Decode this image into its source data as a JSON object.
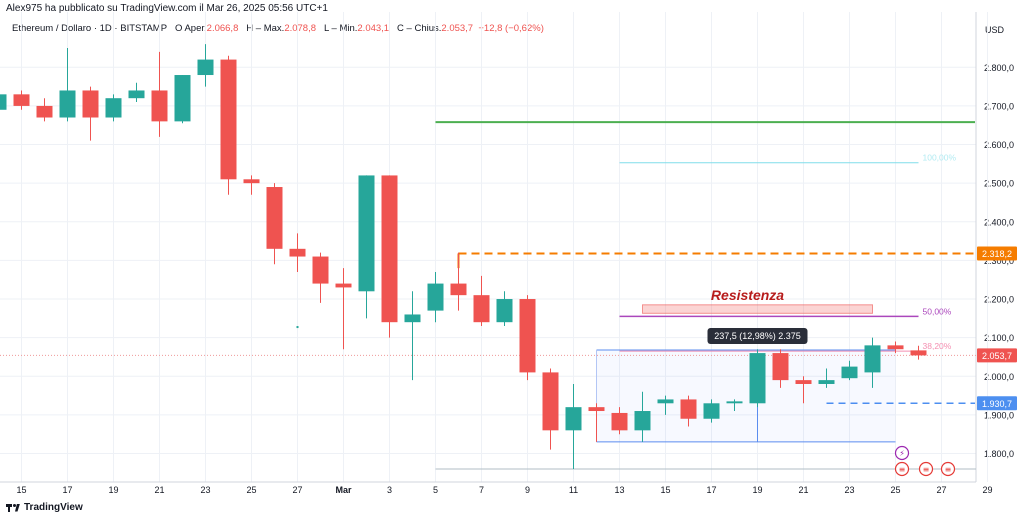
{
  "header": {
    "publisher": "Alex975 ha pubblicato su TradingView.com il Mar 26, 2025 05:56 UTC+1",
    "symbol": "Ethereum / Dollaro · 1D · BITSTAMP",
    "open_label": "O",
    "open_field": "Aper.",
    "open": "2.066,8",
    "high_label": "H",
    "high_field": "Max.",
    "high": "2.078,8",
    "low_label": "L",
    "low_field": "Min.",
    "low": "2.043,1",
    "close_label": "C",
    "close_field": "Chius.",
    "close": "2.053,7",
    "change": "−12,8 (−0,62%)",
    "currency": "USD"
  },
  "footer": {
    "brand": "TradingView"
  },
  "colors": {
    "up": "#26a69a",
    "down": "#ef5350",
    "green_line": "#4caf50",
    "orange": "#f57c00",
    "purple": "#ab47bc",
    "cyan": "#80deea",
    "blue": "#2962ff",
    "label_blue": "#4d8ff0"
  },
  "chart_data": {
    "type": "candlestick",
    "ylim": [
      1750,
      2875
    ],
    "y_ticks": [
      "2.800,0",
      "2.700,0",
      "2.600,0",
      "2.500,0",
      "2.400,0",
      "2.300,0",
      "2.200,0",
      "2.100,0",
      "2.000,0",
      "1.900,0",
      "1.800,0"
    ],
    "y_tick_values": [
      2800,
      2700,
      2600,
      2500,
      2400,
      2300,
      2200,
      2100,
      2000,
      1900,
      1800
    ],
    "x_ticks": [
      "15",
      "17",
      "19",
      "21",
      "23",
      "25",
      "27",
      "Mar",
      "3",
      "5",
      "7",
      "9",
      "11",
      "13",
      "15",
      "17",
      "19",
      "21",
      "23",
      "25",
      "27",
      "29"
    ],
    "x_tick_days": [
      0,
      2,
      4,
      6,
      8,
      10,
      12,
      14,
      16,
      18,
      20,
      22,
      24,
      26,
      28,
      30,
      32,
      34,
      36,
      38,
      40,
      42
    ],
    "candles": [
      {
        "d": -1,
        "o": 2690,
        "h": 2730,
        "l": 2680,
        "c": 2730
      },
      {
        "d": 0,
        "o": 2730,
        "h": 2740,
        "l": 2690,
        "c": 2700
      },
      {
        "d": 1,
        "o": 2700,
        "h": 2720,
        "l": 2660,
        "c": 2670
      },
      {
        "d": 2,
        "o": 2670,
        "h": 2850,
        "l": 2660,
        "c": 2740
      },
      {
        "d": 3,
        "o": 2740,
        "h": 2750,
        "l": 2610,
        "c": 2670
      },
      {
        "d": 4,
        "o": 2670,
        "h": 2730,
        "l": 2660,
        "c": 2720
      },
      {
        "d": 5,
        "o": 2720,
        "h": 2760,
        "l": 2710,
        "c": 2740
      },
      {
        "d": 6,
        "o": 2740,
        "h": 2840,
        "l": 2620,
        "c": 2660
      },
      {
        "d": 7,
        "o": 2660,
        "h": 2780,
        "l": 2655,
        "c": 2780
      },
      {
        "d": 8,
        "o": 2780,
        "h": 2860,
        "l": 2750,
        "c": 2820
      },
      {
        "d": 9,
        "o": 2820,
        "h": 2830,
        "l": 2470,
        "c": 2510
      },
      {
        "d": 10,
        "o": 2510,
        "h": 2520,
        "l": 2470,
        "c": 2500
      },
      {
        "d": 11,
        "o": 2490,
        "h": 2500,
        "l": 2290,
        "c": 2330
      },
      {
        "d": 12,
        "o": 2330,
        "h": 2370,
        "l": 2270,
        "c": 2310
      },
      {
        "d": 13,
        "o": 2310,
        "h": 2320,
        "l": 2190,
        "c": 2240
      },
      {
        "d": 14,
        "o": 2240,
        "h": 2280,
        "l": 2070,
        "c": 2230
      },
      {
        "d": 15,
        "o": 2220,
        "h": 2520,
        "l": 2150,
        "c": 2520
      },
      {
        "d": 16,
        "o": 2520,
        "h": 2520,
        "l": 2100,
        "c": 2140
      },
      {
        "d": 17,
        "o": 2140,
        "h": 2220,
        "l": 1990,
        "c": 2160
      },
      {
        "d": 18,
        "o": 2170,
        "h": 2270,
        "l": 2140,
        "c": 2240
      },
      {
        "d": 19,
        "o": 2240,
        "h": 2320,
        "l": 2170,
        "c": 2210
      },
      {
        "d": 20,
        "o": 2210,
        "h": 2260,
        "l": 2130,
        "c": 2140
      },
      {
        "d": 21,
        "o": 2140,
        "h": 2220,
        "l": 2130,
        "c": 2200
      },
      {
        "d": 22,
        "o": 2200,
        "h": 2210,
        "l": 1990,
        "c": 2010
      },
      {
        "d": 23,
        "o": 2010,
        "h": 2020,
        "l": 1810,
        "c": 1860
      },
      {
        "d": 24,
        "o": 1860,
        "h": 1980,
        "l": 1760,
        "c": 1920
      },
      {
        "d": 25,
        "o": 1920,
        "h": 1930,
        "l": 1830,
        "c": 1910
      },
      {
        "d": 26,
        "o": 1905,
        "h": 1920,
        "l": 1850,
        "c": 1860
      },
      {
        "d": 27,
        "o": 1860,
        "h": 1960,
        "l": 1830,
        "c": 1910
      },
      {
        "d": 28,
        "o": 1930,
        "h": 1950,
        "l": 1900,
        "c": 1940
      },
      {
        "d": 29,
        "o": 1940,
        "h": 1950,
        "l": 1870,
        "c": 1890
      },
      {
        "d": 30,
        "o": 1890,
        "h": 1940,
        "l": 1880,
        "c": 1930
      },
      {
        "d": 31,
        "o": 1930,
        "h": 1940,
        "l": 1910,
        "c": 1935
      },
      {
        "d": 32,
        "o": 1930,
        "h": 2070,
        "l": 1920,
        "c": 2060
      },
      {
        "d": 33,
        "o": 2060,
        "h": 2070,
        "l": 1970,
        "c": 1990
      },
      {
        "d": 34,
        "o": 1990,
        "h": 2000,
        "l": 1930,
        "c": 1980
      },
      {
        "d": 35,
        "o": 1980,
        "h": 2020,
        "l": 1970,
        "c": 1990
      },
      {
        "d": 36,
        "o": 1995,
        "h": 2040,
        "l": 1990,
        "c": 2025
      },
      {
        "d": 37,
        "o": 2010,
        "h": 2100,
        "l": 1970,
        "c": 2080
      },
      {
        "d": 38,
        "o": 2080,
        "h": 2090,
        "l": 2060,
        "c": 2070
      },
      {
        "d": 39,
        "o": 2067,
        "h": 2079,
        "l": 2043,
        "c": 2054
      }
    ],
    "horizontal_lines": [
      {
        "name": "green",
        "y": 2658,
        "d0": 18,
        "d1": 43
      },
      {
        "name": "orange-dashed",
        "y": 2318,
        "d0": 19,
        "d1": 43
      },
      {
        "name": "cyan",
        "y": 2553,
        "d0": 26,
        "d1": 39
      },
      {
        "name": "blue-dashed",
        "y": 1930,
        "d0": 35,
        "d1": 43
      }
    ],
    "fib_levels": [
      {
        "label": "100,00%",
        "y": 2553
      },
      {
        "label": "50,00%",
        "y": 2155
      },
      {
        "label": "38,20%",
        "y": 2065
      }
    ],
    "resistance": {
      "label": "Resistenza",
      "y0": 2163,
      "y1": 2185,
      "d0": 27,
      "d1": 37
    },
    "measure": {
      "label": "237,5 (12,98%) 2.375",
      "top": 2068,
      "bottom": 1830,
      "d0": 25,
      "d1": 38,
      "mid_day": 32
    },
    "price_labels": [
      {
        "label": "2.318,2",
        "y": 2318,
        "kind": "orange"
      },
      {
        "label": "2.053,7",
        "y": 2054,
        "kind": "red"
      },
      {
        "label": "1.930,7",
        "y": 1930,
        "kind": "blue"
      }
    ]
  }
}
